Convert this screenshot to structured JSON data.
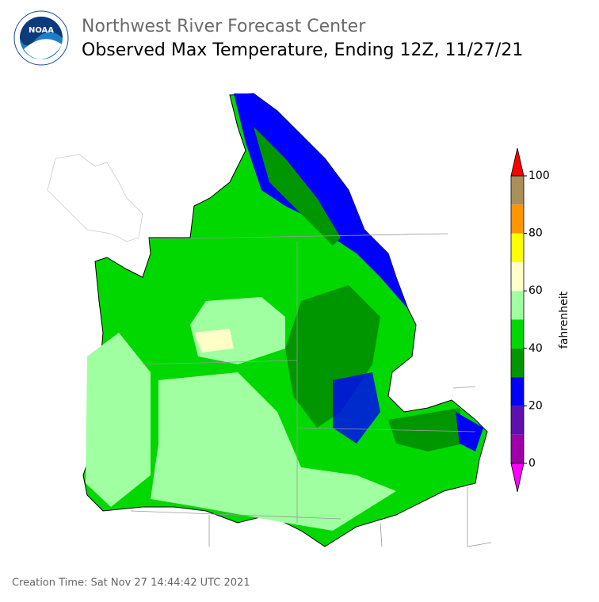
{
  "header": {
    "title": "Northwest River Forecast Center",
    "subtitle": "Observed Max Temperature, Ending 12Z, 11/27/21",
    "logo_text": "NOAA"
  },
  "colorbar": {
    "label": "fahrenheit",
    "levels": [
      0,
      10,
      20,
      30,
      40,
      50,
      60,
      70,
      80,
      90,
      100
    ],
    "colors": [
      "#a000a8",
      "#6010b0",
      "#0000ff",
      "#009600",
      "#00d800",
      "#a0ffa0",
      "#ffffc8",
      "#ffff00",
      "#ff9600",
      "#a89058"
    ],
    "under_color": "#ff00ff",
    "over_color": "#ff0000",
    "ticks": [
      0,
      20,
      40,
      60,
      80,
      100
    ]
  },
  "footer": {
    "creation_time": "Creation Time: Sat Nov 27 14:44:42 UTC 2021"
  }
}
